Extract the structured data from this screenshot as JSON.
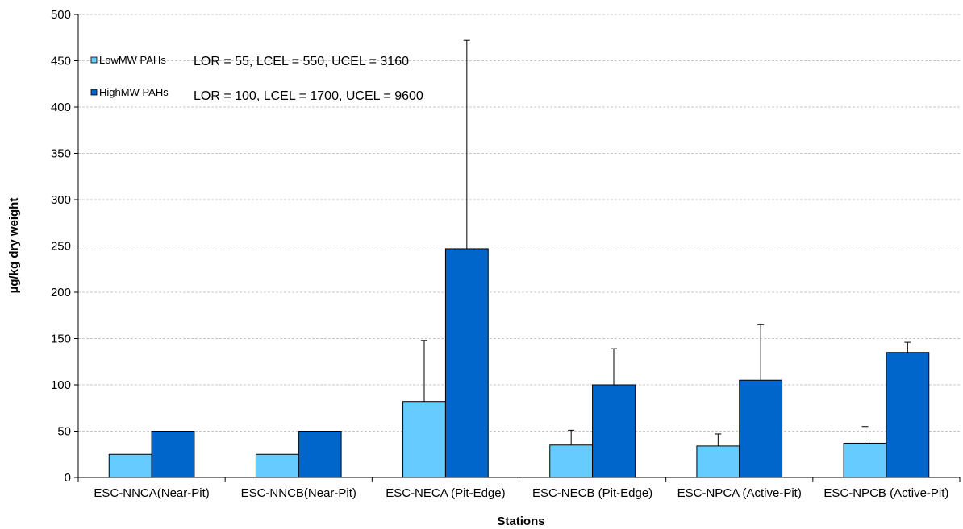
{
  "chart_data": {
    "type": "bar",
    "title": "",
    "xlabel": "Stations",
    "ylabel": "µg/kg dry weight",
    "ylim": [
      0,
      500
    ],
    "y_ticks": [
      0,
      50,
      100,
      150,
      200,
      250,
      300,
      350,
      400,
      450,
      500
    ],
    "grid": true,
    "legend_position": "top-left",
    "categories": [
      "ESC-NNCA(Near-Pit)",
      "ESC-NNCB(Near-Pit)",
      "ESC-NECA (Pit-Edge)",
      "ESC-NECB (Pit-Edge)",
      "ESC-NPCA (Active-Pit)",
      "ESC-NPCB (Active-Pit)"
    ],
    "series": [
      {
        "name": "LowMW PAHs",
        "color": "#66ccff",
        "values": [
          25,
          25,
          82,
          35,
          34,
          37
        ],
        "error_upper": [
          null,
          null,
          148,
          51,
          47,
          55
        ]
      },
      {
        "name": "HighMW PAHs",
        "color": "#0066cc",
        "values": [
          50,
          50,
          247,
          100,
          105,
          135
        ],
        "error_upper": [
          null,
          null,
          472,
          139,
          165,
          146
        ]
      }
    ],
    "annotations": [
      "LOR = 55, LCEL = 550, UCEL = 3160",
      "LOR = 100, LCEL = 1700, UCEL = 9600"
    ]
  }
}
